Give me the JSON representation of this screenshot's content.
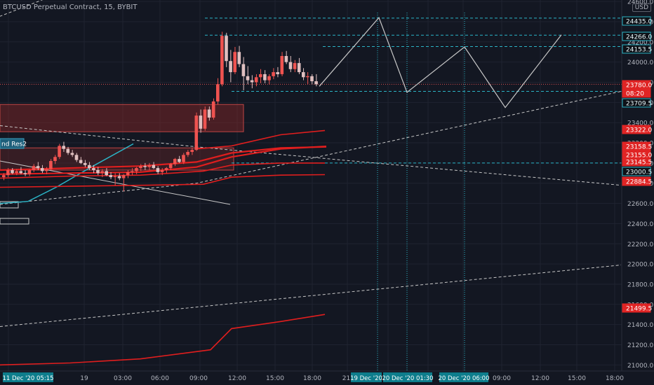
{
  "header": {
    "title": "BTCUSD Perpetual Contract, 15, BYBIT",
    "currency": "USD"
  },
  "colors": {
    "background": "#131722",
    "grid": "#1f2330",
    "axis_text": "#b2b5be",
    "candle_up": "#ef5350",
    "candle_down": "#e0c0c0",
    "red_line": "#e01e1e",
    "cyan": "#2bb5c7",
    "white_line": "#c8c8c8"
  },
  "chart_data": {
    "type": "candlestick",
    "title": "BTCUSD Perpetual Contract, 15, BYBIT",
    "ylim": [
      20940,
      24580
    ],
    "y_ticks": [
      21000,
      21200,
      21400,
      21600,
      21800,
      22000,
      22200,
      22400,
      22600,
      22800,
      23000,
      23200,
      23400,
      23600,
      23800,
      24000,
      24200,
      24400,
      24600
    ],
    "x_tick_labels": [
      "06:00",
      "19",
      "03:00",
      "06:00",
      "09:00",
      "12:00",
      "15:00",
      "18:00",
      "21:",
      "09:00",
      "12:00",
      "15:00",
      "18:00"
    ],
    "x_highlight_labels": [
      "11 Dec '20  05:15",
      "19 Dec '20",
      "20 Dec '20  01:30",
      "20 Dec '20  06:00"
    ],
    "price_labels": [
      {
        "value": "24435.0",
        "kind": "cyan"
      },
      {
        "value": "24266.0",
        "kind": "cyan"
      },
      {
        "value": "24153.5",
        "kind": "cyan"
      },
      {
        "value": "23780.0",
        "kind": "red"
      },
      {
        "value": "08:20",
        "kind": "red"
      },
      {
        "value": "23709.5",
        "kind": "cyan"
      },
      {
        "value": "23322.0",
        "kind": "red"
      },
      {
        "value": "23158.5",
        "kind": "red"
      },
      {
        "value": "23155.0",
        "kind": "red"
      },
      {
        "value": "23145.5",
        "kind": "red"
      },
      {
        "value": "23000.5",
        "kind": "cyan"
      },
      {
        "value": "22884.5",
        "kind": "red"
      },
      {
        "value": "21499.5",
        "kind": "red"
      }
    ],
    "annotation_label": "nd Res2",
    "candles": [
      [
        22860,
        22900,
        22830,
        22880
      ],
      [
        22880,
        22950,
        22860,
        22930
      ],
      [
        22930,
        22950,
        22890,
        22900
      ],
      [
        22900,
        22940,
        22880,
        22920
      ],
      [
        22920,
        22960,
        22890,
        22900
      ],
      [
        22900,
        22930,
        22870,
        22890
      ],
      [
        22890,
        22940,
        22870,
        22930
      ],
      [
        22930,
        22990,
        22910,
        22970
      ],
      [
        22970,
        23010,
        22930,
        22950
      ],
      [
        22950,
        22980,
        22900,
        22920
      ],
      [
        22920,
        22960,
        22890,
        22940
      ],
      [
        22940,
        23040,
        22930,
        23020
      ],
      [
        23020,
        23080,
        22990,
        23060
      ],
      [
        23060,
        23190,
        23040,
        23170
      ],
      [
        23170,
        23210,
        23110,
        23140
      ],
      [
        23140,
        23160,
        23080,
        23100
      ],
      [
        23100,
        23130,
        23060,
        23080
      ],
      [
        23080,
        23100,
        23010,
        23030
      ],
      [
        23030,
        23060,
        22990,
        23000
      ],
      [
        23000,
        23030,
        22960,
        22980
      ],
      [
        22980,
        23010,
        22930,
        22950
      ],
      [
        22950,
        22980,
        22900,
        22930
      ],
      [
        22930,
        22960,
        22880,
        22900
      ],
      [
        22900,
        22940,
        22860,
        22920
      ],
      [
        22920,
        22950,
        22870,
        22880
      ],
      [
        22880,
        22910,
        22840,
        22860
      ],
      [
        22860,
        22900,
        22780,
        22870
      ],
      [
        22870,
        22900,
        22830,
        22850
      ],
      [
        22850,
        22890,
        22720,
        22880
      ],
      [
        22880,
        22930,
        22850,
        22910
      ],
      [
        22910,
        22950,
        22880,
        22920
      ],
      [
        22920,
        22960,
        22890,
        22950
      ],
      [
        22950,
        22990,
        22920,
        22970
      ],
      [
        22970,
        23000,
        22930,
        22960
      ],
      [
        22960,
        23000,
        22930,
        22980
      ],
      [
        22980,
        23010,
        22940,
        22950
      ],
      [
        22950,
        22970,
        22890,
        22910
      ],
      [
        22910,
        22950,
        22880,
        22930
      ],
      [
        22930,
        22960,
        22900,
        22950
      ],
      [
        22950,
        23000,
        22930,
        22990
      ],
      [
        22990,
        23050,
        22970,
        23040
      ],
      [
        23040,
        23070,
        23000,
        23010
      ],
      [
        23010,
        23100,
        22990,
        23080
      ],
      [
        23080,
        23130,
        23060,
        23110
      ],
      [
        23110,
        23150,
        23080,
        23130
      ],
      [
        23130,
        23500,
        23120,
        23470
      ],
      [
        23470,
        23530,
        23300,
        23340
      ],
      [
        23340,
        23560,
        23320,
        23530
      ],
      [
        23530,
        23560,
        23420,
        23450
      ],
      [
        23450,
        23640,
        23430,
        23610
      ],
      [
        23610,
        23840,
        23580,
        23780
      ],
      [
        23780,
        24300,
        23760,
        24260
      ],
      [
        24260,
        24290,
        23950,
        24010
      ],
      [
        24010,
        24120,
        23800,
        23900
      ],
      [
        23900,
        24150,
        23880,
        24100
      ],
      [
        24100,
        24160,
        23950,
        23980
      ],
      [
        23980,
        24050,
        23720,
        23860
      ],
      [
        23860,
        23960,
        23780,
        23820
      ],
      [
        23820,
        23870,
        23740,
        23800
      ],
      [
        23800,
        23880,
        23760,
        23850
      ],
      [
        23850,
        23930,
        23790,
        23880
      ],
      [
        23880,
        23920,
        23790,
        23820
      ],
      [
        23820,
        23880,
        23780,
        23860
      ],
      [
        23860,
        23940,
        23830,
        23900
      ],
      [
        23900,
        23950,
        23850,
        23880
      ],
      [
        23880,
        24100,
        23860,
        24060
      ],
      [
        24060,
        24110,
        23980,
        24000
      ],
      [
        24000,
        24060,
        23900,
        23930
      ],
      [
        23930,
        24020,
        23900,
        23990
      ],
      [
        23990,
        24040,
        23880,
        23900
      ],
      [
        23900,
        23940,
        23820,
        23850
      ],
      [
        23850,
        23900,
        23780,
        23860
      ],
      [
        23860,
        23880,
        23780,
        23810
      ],
      [
        23810,
        23880,
        23760,
        23780
      ]
    ],
    "red_lines": [
      [
        [
          0,
          22930
        ],
        [
          100,
          22950
        ],
        [
          200,
          22970
        ],
        [
          280,
          23010
        ],
        [
          330,
          23100
        ],
        [
          400,
          23150
        ],
        [
          465,
          23160
        ]
      ],
      [
        [
          0,
          22890
        ],
        [
          100,
          22900
        ],
        [
          200,
          22910
        ],
        [
          280,
          22960
        ],
        [
          330,
          23060
        ],
        [
          400,
          23140
        ],
        [
          465,
          23165
        ]
      ],
      [
        [
          0,
          22850
        ],
        [
          100,
          22870
        ],
        [
          200,
          22880
        ],
        [
          290,
          22920
        ],
        [
          330,
          22980
        ],
        [
          400,
          23000
        ],
        [
          463,
          23000
        ]
      ],
      [
        [
          0,
          22760
        ],
        [
          100,
          22770
        ],
        [
          210,
          22780
        ],
        [
          290,
          22790
        ],
        [
          330,
          22860
        ],
        [
          400,
          22880
        ],
        [
          463,
          22885
        ]
      ],
      [
        [
          280,
          23140
        ],
        [
          330,
          23170
        ],
        [
          400,
          23280
        ],
        [
          463,
          23322
        ]
      ],
      [
        [
          0,
          21000
        ],
        [
          100,
          21020
        ],
        [
          200,
          21060
        ],
        [
          300,
          21150
        ],
        [
          330,
          21360
        ],
        [
          400,
          21430
        ],
        [
          463,
          21500
        ]
      ]
    ],
    "white_path": [
      [
        455,
        23760
      ],
      [
        540,
        24440
      ],
      [
        580,
        23700
      ],
      [
        662,
        24150
      ],
      [
        720,
        23550
      ],
      [
        800,
        24270
      ]
    ],
    "dashed_lines": [
      [
        [
          -20,
          24400
        ],
        [
          110,
          24750
        ]
      ],
      [
        [
          0,
          23370
        ],
        [
          280,
          23160
        ],
        [
          885,
          22780
        ]
      ],
      [
        [
          0,
          22590
        ],
        [
          280,
          22800
        ],
        [
          885,
          23710
        ]
      ],
      [
        [
          0,
          21380
        ],
        [
          885,
          21990
        ]
      ]
    ],
    "solid_gray_lines": [
      [
        [
          0,
          23020
        ],
        [
          328,
          22590
        ]
      ]
    ],
    "cyan_curve": [
      [
        0,
        22600
      ],
      [
        40,
        22620
      ],
      [
        80,
        22760
      ],
      [
        130,
        22960
      ],
      [
        190,
        23190
      ]
    ],
    "boxes": [
      {
        "x0": 0,
        "x1": 347,
        "top": 23580,
        "bottom": 23310,
        "kind": "res1"
      },
      {
        "x0": 0,
        "x1": 333,
        "top": 23150,
        "bottom": 22930,
        "kind": "res2"
      }
    ],
    "horizontal_levels": [
      {
        "value": 24435,
        "x0": 292,
        "kind": "cyan"
      },
      {
        "value": 24266,
        "x0": 292,
        "kind": "cyan"
      },
      {
        "value": 24153.5,
        "x0": 460,
        "kind": "cyan"
      },
      {
        "value": 23709.5,
        "x0": 330,
        "kind": "cyan"
      },
      {
        "value": 23000.5,
        "x0": 330,
        "kind": "cyan"
      },
      {
        "value": 23780,
        "x0": 0,
        "kind": "red_dotted"
      }
    ],
    "vertical_dotted": [
      538,
      580,
      662
    ]
  }
}
